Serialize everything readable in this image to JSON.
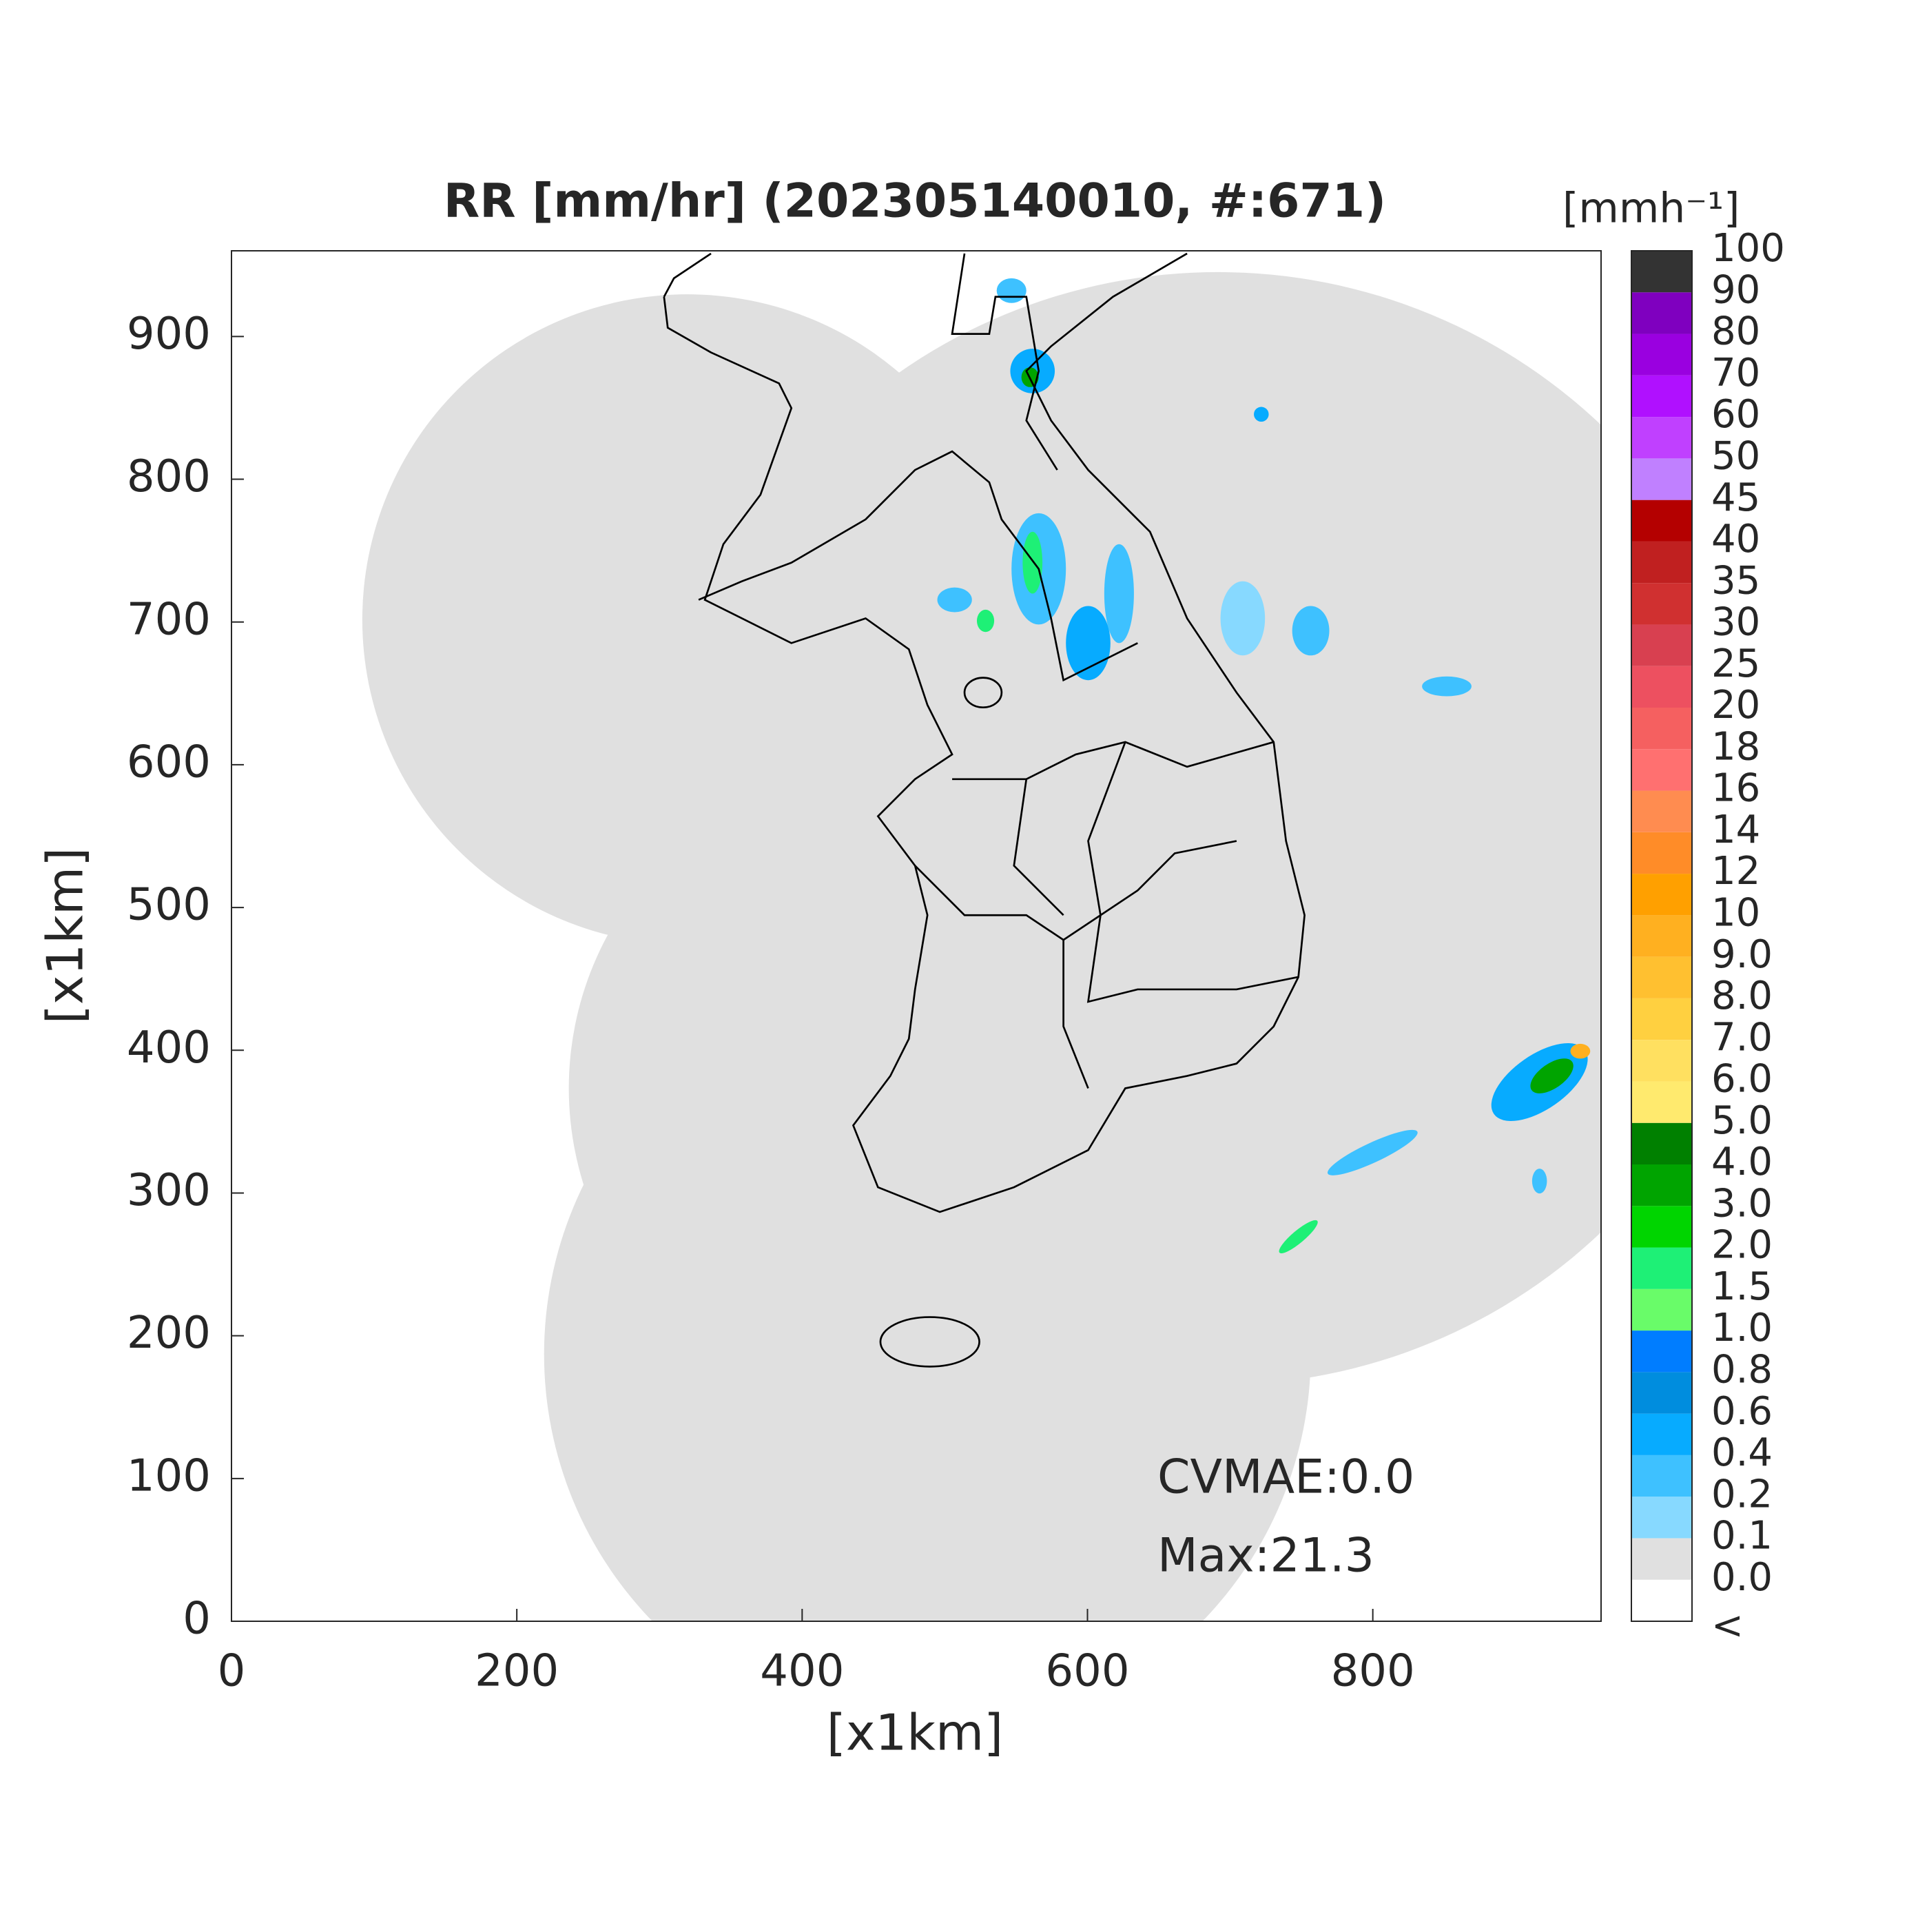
{
  "title": "RR [mm/hr] (202305140010, #:671)",
  "x_label": "[x1km]",
  "y_label": "[x1km]",
  "xlim": [
    0,
    960
  ],
  "ylim": [
    0,
    960
  ],
  "xticks": [
    0,
    200,
    400,
    600,
    800
  ],
  "yticks": [
    0,
    100,
    200,
    300,
    400,
    500,
    600,
    700,
    800,
    900
  ],
  "colorbar": {
    "title": "[mmh⁻¹]",
    "labels": [
      "<",
      "0.0",
      "0.1",
      "0.2",
      "0.4",
      "0.6",
      "0.8",
      "1.0",
      "1.5",
      "2.0",
      "3.0",
      "4.0",
      "5.0",
      "6.0",
      "7.0",
      "8.0",
      "9.0",
      "10",
      "12",
      "14",
      "16",
      "18",
      "20",
      "25",
      "30",
      "35",
      "40",
      "45",
      "50",
      "60",
      "70",
      "80",
      "90",
      "100"
    ],
    "colors": [
      "#ffffff",
      "#e0e0e0",
      "#87d9ff",
      "#3ec1ff",
      "#07abff",
      "#008dde",
      "#007dff",
      "#69fc69",
      "#1ef076",
      "#00d500",
      "#00a400",
      "#008000",
      "#ffea6e",
      "#ffe060",
      "#ffd040",
      "#ffc030",
      "#ffb020",
      "#ffa000",
      "#ff8c28",
      "#ff8c50",
      "#ff7070",
      "#f56060",
      "#ed5060",
      "#d84050",
      "#d03030",
      "#c02020",
      "#b40000",
      "#c080ff",
      "#c040ff",
      "#b010ff",
      "#9a00e0",
      "#7f00bf",
      "#333333"
    ]
  },
  "annotations": [
    "CVMAE:0.0",
    "Max:21.3"
  ]
}
